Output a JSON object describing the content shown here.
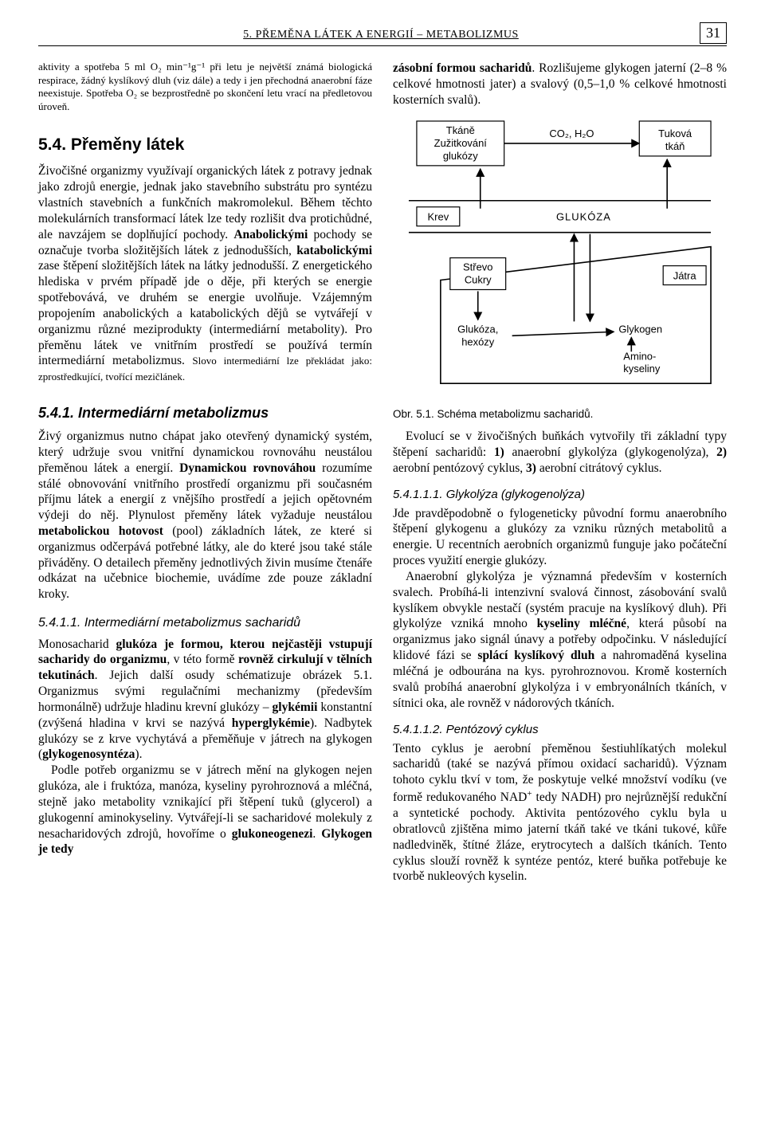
{
  "header": {
    "section_title": "5. PŘEMĚNA LÁTEK A ENERGIÍ – METABOLIZMUS",
    "page_number": "31"
  },
  "left": {
    "intro_small": "aktivity a spotřeba 5 ml O₂ min⁻¹g⁻¹ při letu je největší známá biologická respirace, žádný kyslíkový dluh (viz dále) a tedy i jen přechodná anaerobní fáze neexistuje. Spotřeba O₂ se bezprostředně po skončení letu vrací na předletovou úroveň.",
    "h2_54": "5.4. Přeměny látek",
    "p54_html": "Živočišné organizmy využívají organických látek z potravy jednak jako zdrojů energie, jednak jako stavebního substrátu pro syntézu vlastních stavebních a funkčních makromolekul. Během těchto molekulárních transformací látek lze tedy rozlišit dva protichůdné, ale navzájem se doplňující pochody. <b>Anabolickými</b> pochody se označuje tvorba složitějších látek z jednodušších, <b>katabolickými</b> zase štěpení složitějších látek na látky jednodušší. Z energetického hlediska v prvém případě jde o děje, při kterých se energie spotřebovává, ve druhém se energie uvolňuje. Vzájemným propojením anabolických a katabolických dějů se vytvářejí v organizmu různé meziprodukty (intermediární metabolity). Pro přeměnu látek ve vnitřním prostředí se používá termín intermediární metabolizmus. <span class=\"smallcaps\">Slovo intermediární lze překládat jako: zprostředkující, tvořící mezičlánek.</span>",
    "h3_541": "5.4.1. Intermediární metabolizmus",
    "p541_html": "Živý organizmus nutno chápat jako otevřený dynamický systém, který udržuje svou vnitřní dynamickou rovnováhu neustálou přeměnou látek a energií. <b>Dynamickou rovnováhou</b> rozumíme stálé obnovování vnitřního prostředí organizmu při současném příjmu látek a energií z vnějšího prostředí a jejich opětovném výdeji do něj. Plynulost přeměny látek vyžaduje neustálou <b>metabolickou hotovost</b> (pool) základních látek, ze které si organizmus odčerpává potřebné látky, ale do které jsou také stále přiváděny. O detailech přeměny jednotlivých živin musíme čtenáře odkázat na učebnice biochemie, uvádíme zde pouze základní kroky.",
    "h4_5411": "5.4.1.1. Intermediární metabolizmus sacharidů",
    "p5411a_html": "Monosacharid <b>glukóza je formou, kterou nejčastěji vstupují sacharidy do organizmu</b>, v této formě <b>rovněž cirkulují v tělních tekutinách</b>. Jejich další osudy schématizuje obrázek 5.1. Organizmus svými regulačními mechanizmy (především hormonálně) udržuje hladinu krevní glukózy – <b>glykémii</b> konstantní (zvýšená hladina v krvi se nazývá <b>hyperglykémie</b>). Nadbytek glukózy se z krve vychytává a přeměňuje v játrech na glykogen (<b>glykogenosyntéza</b>).",
    "p5411b_html": "Podle potřeb organizmu se v játrech mění na glykogen nejen glukóza, ale i fruktóza, manóza, kyseliny pyrohroznová a mléčná, stejně jako metabolity vznikající při štěpení tuků (glycerol) a glukogenní aminokyseliny. Vytvářejí-li se sacharidové molekuly z nesacharidových zdrojů, hovoříme o <b>glukoneogenezi</b>. <b>Glykogen je tedy</b>"
  },
  "right": {
    "top_html": "<b>zásobní formou sacharidů</b>. Rozlišujeme glykogen jaterní (2–8 % celkové hmotnosti jater) a svalový (0,5–1,0 % celkové hmotnosti kosterních svalů).",
    "caption": "Obr. 5.1. Schéma metabolizmu sacharidů.",
    "p_evoluce_html": "Evolucí se v živočišných buňkách vytvořily tři základní typy štěpení sacharidů: <b>1)</b> anaerobní glykolýza (glykogenolýza), <b>2)</b> aerobní pentózový cyklus, <b>3)</b> aerobní citrátový cyklus.",
    "h5_54111": "5.4.1.1.1. Glykolýza (glykogenolýza)",
    "p54111a_html": "Jde pravděpodobně o fylogeneticky původní formu anaerobního štěpení glykogenu a glukózy za vzniku různých metabolitů a energie. U recentních aerobních organizmů funguje jako počáteční proces využití energie glukózy.",
    "p54111b_html": "Anaerobní glykolýza je významná především v kosterních svalech. Probíhá-li intenzivní svalová činnost, zásobování svalů kyslíkem obvykle nestačí (systém pracuje na kyslíkový dluh). Při glykolýze vzniká mnoho <b>kyseliny mléčné</b>, která působí na organizmus jako signál únavy a potřeby odpočinku. V následující klidové fázi se <b>splácí kyslíkový dluh</b> a nahromaděná kyselina mléčná je odbourána na kys. pyrohroznovou. Kromě kosterních svalů probíhá anaerobní glykolýza i v embryonálních tkáních, v sítnici oka, ale rovněž v nádorových tkáních.",
    "h5_54112": "5.4.1.1.2. Pentózový cyklus",
    "p54112_html": "Tento cyklus je aerobní přeměnou šestiuhlíkatých molekul sacharidů (také se nazývá přímou oxidací sacharidů). Význam tohoto cyklu tkví v tom, že poskytuje velké množství vodíku (ve formě redukovaného NAD<span class=\"sup\">+</span> tedy NADH) pro nejrůznější redukční a syntetické pochody. Aktivita pentózového cyklu byla u obratlovců zjištěna mimo jaterní tkáň také ve tkáni tukové, kůře nadledviněk, štítné žláze, erytrocytech a dalších tkáních. Tento cyklus slouží rovněž k syntéze pentóz, které buňka potřebuje ke tvorbě nukleových kyselin."
  },
  "diagram": {
    "type": "flowchart",
    "labels": {
      "tkane": "Tkáně",
      "zuzitkovani": "Zužitkování",
      "glukozy": "glukózy",
      "co2h2o": "CO₂, H₂O",
      "tukova": "Tuková",
      "tkan": "tkáň",
      "krev": "Krev",
      "glukoza": "GLUKÓZA",
      "strevo": "Střevo",
      "cukry": "Cukry",
      "jatra": "Játra",
      "glukoza_hexozy1": "Glukóza,",
      "glukoza_hexozy2": "hexózy",
      "glykogen": "Glykogen",
      "amino1": "Amino-",
      "amino2": "kyseliny"
    },
    "colors": {
      "stroke": "#000000",
      "fill": "#ffffff",
      "text": "#000000"
    }
  }
}
